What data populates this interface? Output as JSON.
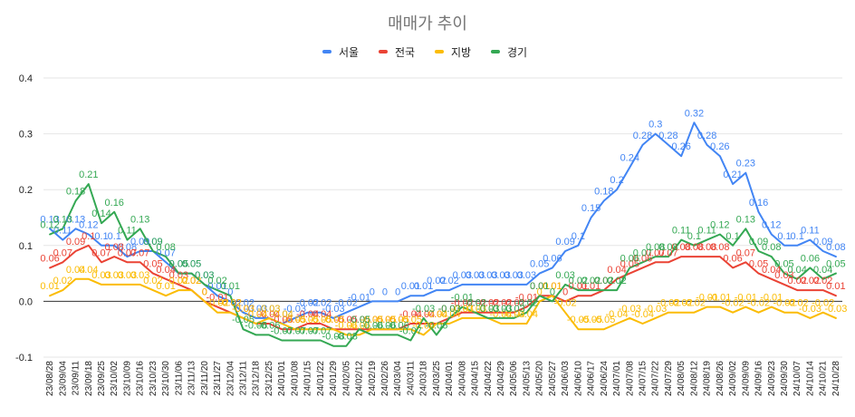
{
  "chart_data": {
    "type": "line",
    "title": "매매가 추이",
    "ylim": [
      -0.1,
      0.4
    ],
    "yticks": [
      "-0.1",
      "0.0",
      "0.1",
      "0.2",
      "0.3",
      "0.4"
    ],
    "legend_position": "top",
    "categories": [
      "23/08/28",
      "23/09/04",
      "23/09/11",
      "23/09/18",
      "23/09/25",
      "23/10/02",
      "23/10/09",
      "23/10/16",
      "23/10/23",
      "23/10/30",
      "23/11/06",
      "23/11/13",
      "23/11/20",
      "23/11/27",
      "23/12/04",
      "23/12/11",
      "23/12/18",
      "23/12/25",
      "24/01/01",
      "24/01/08",
      "24/01/15",
      "24/01/22",
      "24/01/29",
      "24/02/05",
      "24/02/12",
      "24/02/19",
      "24/02/26",
      "24/03/04",
      "24/03/11",
      "24/03/18",
      "24/03/25",
      "24/04/01",
      "24/04/08",
      "24/04/15",
      "24/04/22",
      "24/04/29",
      "24/05/06",
      "24/05/13",
      "24/05/20",
      "24/05/27",
      "24/06/03",
      "24/06/10",
      "24/06/17",
      "24/06/24",
      "24/07/01",
      "24/07/08",
      "24/07/15",
      "24/07/22",
      "24/07/29",
      "24/08/05",
      "24/08/12",
      "24/08/19",
      "24/08/26",
      "24/09/02",
      "24/09/09",
      "24/09/16",
      "24/09/23",
      "24/09/30",
      "24/10/07",
      "24/10/14",
      "24/10/21",
      "24/10/28"
    ],
    "x_tick_labels": [
      "23/08/28",
      "23/09/04",
      "23/09/11",
      "23/09/18",
      "23/09/25",
      "23/10/02",
      "23/10/09",
      "23/10/16",
      "23/10/23",
      "23/10/30",
      "23/11/06",
      "23/11/13",
      "23/11/20",
      "23/11/27",
      "23/12/04",
      "23/12/11",
      "23/12/18",
      "23/12/25",
      "24/01/01",
      "24/01/08",
      "24/01/15",
      "24/01/22",
      "24/01/29",
      "24/02/05",
      "24/02/12",
      "24/02/19",
      "24/02/26",
      "24/03/04",
      "24/03/11",
      "24/03/18",
      "24/03/25",
      "24/04/01",
      "24/04/08",
      "24/04/15",
      "24/04/22",
      "24/04/29",
      "24/05/06",
      "24/05/13",
      "24/05/20",
      "24/05/27",
      "24/06/03",
      "24/06/10",
      "24/06/17",
      "24/06/24",
      "24/07/01",
      "24/07/08",
      "24/07/15",
      "24/07/22",
      "24/07/29",
      "24/08/05",
      "24/08/12",
      "24/08/19",
      "24/08/26",
      "24/09/02",
      "24/09/09",
      "24/09/16",
      "24/09/23",
      "24/09/30",
      "24/10/07",
      "24/10/14",
      "24/10/21",
      "24/10/28"
    ],
    "series": [
      {
        "name": "서울",
        "color": "#4285f4",
        "values": [
          0.13,
          0.11,
          0.13,
          0.12,
          0.1,
          0.1,
          0.08,
          0.09,
          0.09,
          0.07,
          0.05,
          0.05,
          0.03,
          0.01,
          0,
          -0.02,
          -0.03,
          -0.03,
          -0.04,
          -0.03,
          -0.02,
          -0.02,
          -0.03,
          -0.02,
          -0.01,
          0,
          0,
          0,
          0.01,
          0.01,
          0.02,
          0.02,
          0.03,
          0.03,
          0.03,
          0.03,
          0.03,
          0.03,
          0.05,
          0.06,
          0.09,
          0.1,
          0.15,
          0.18,
          0.2,
          0.24,
          0.28,
          0.3,
          0.28,
          0.26,
          0.32,
          0.28,
          0.26,
          0.21,
          0.23,
          0.16,
          0.12,
          0.1,
          0.1,
          0.11,
          0.09,
          0.08
        ]
      },
      {
        "name": "전국",
        "color": "#ea4335",
        "values": [
          0.06,
          0.07,
          0.09,
          0.1,
          0.07,
          0.08,
          0.07,
          0.07,
          0.05,
          0.04,
          0.03,
          0.02,
          0,
          -0.01,
          -0.02,
          -0.03,
          -0.04,
          -0.04,
          -0.05,
          -0.05,
          -0.04,
          -0.04,
          -0.05,
          -0.05,
          -0.05,
          -0.05,
          -0.05,
          -0.05,
          -0.04,
          -0.04,
          -0.04,
          -0.03,
          -0.02,
          -0.02,
          -0.02,
          -0.02,
          -0.02,
          -0.01,
          0.01,
          0.01,
          0,
          0.01,
          0.01,
          0.02,
          0.04,
          0.05,
          0.06,
          0.07,
          0.07,
          0.08,
          0.08,
          0.08,
          0.08,
          0.06,
          0.07,
          0.05,
          0.04,
          0.03,
          0.02,
          0.02,
          0.02,
          0.01
        ]
      },
      {
        "name": "지방",
        "color": "#fbbc04",
        "values": [
          0.01,
          0.02,
          0.04,
          0.04,
          0.03,
          0.03,
          0.03,
          0.03,
          0.02,
          0.01,
          0.02,
          0.02,
          0,
          -0.02,
          -0.02,
          -0.03,
          -0.04,
          -0.03,
          -0.04,
          -0.05,
          -0.05,
          -0.05,
          -0.05,
          -0.06,
          -0.06,
          -0.05,
          -0.05,
          -0.05,
          -0.05,
          -0.06,
          -0.04,
          -0.04,
          -0.03,
          -0.03,
          -0.03,
          -0.04,
          -0.04,
          -0.04,
          0,
          0.01,
          -0.02,
          -0.05,
          -0.05,
          -0.05,
          -0.04,
          -0.03,
          -0.04,
          -0.03,
          -0.02,
          -0.02,
          -0.02,
          -0.01,
          -0.01,
          -0.02,
          -0.01,
          -0.02,
          -0.01,
          -0.02,
          -0.02,
          -0.03,
          -0.02,
          -0.03
        ]
      },
      {
        "name": "경기",
        "color": "#34a853",
        "values": [
          0.12,
          0.13,
          0.18,
          0.21,
          0.14,
          0.16,
          0.11,
          0.13,
          0.09,
          0.08,
          0.05,
          0.05,
          0.03,
          0.02,
          0.01,
          -0.05,
          -0.06,
          -0.06,
          -0.07,
          -0.07,
          -0.07,
          -0.07,
          -0.08,
          -0.08,
          -0.05,
          -0.06,
          -0.06,
          -0.06,
          -0.07,
          -0.03,
          -0.06,
          -0.03,
          -0.01,
          -0.02,
          -0.03,
          -0.03,
          -0.03,
          -0.02,
          0.01,
          0,
          0.03,
          0.02,
          0.02,
          0.02,
          0.02,
          0.06,
          0.07,
          0.08,
          0.08,
          0.11,
          0.1,
          0.11,
          0.12,
          0.1,
          0.13,
          0.09,
          0.08,
          0.05,
          0.04,
          0.06,
          0.04,
          0.05
        ]
      }
    ]
  }
}
